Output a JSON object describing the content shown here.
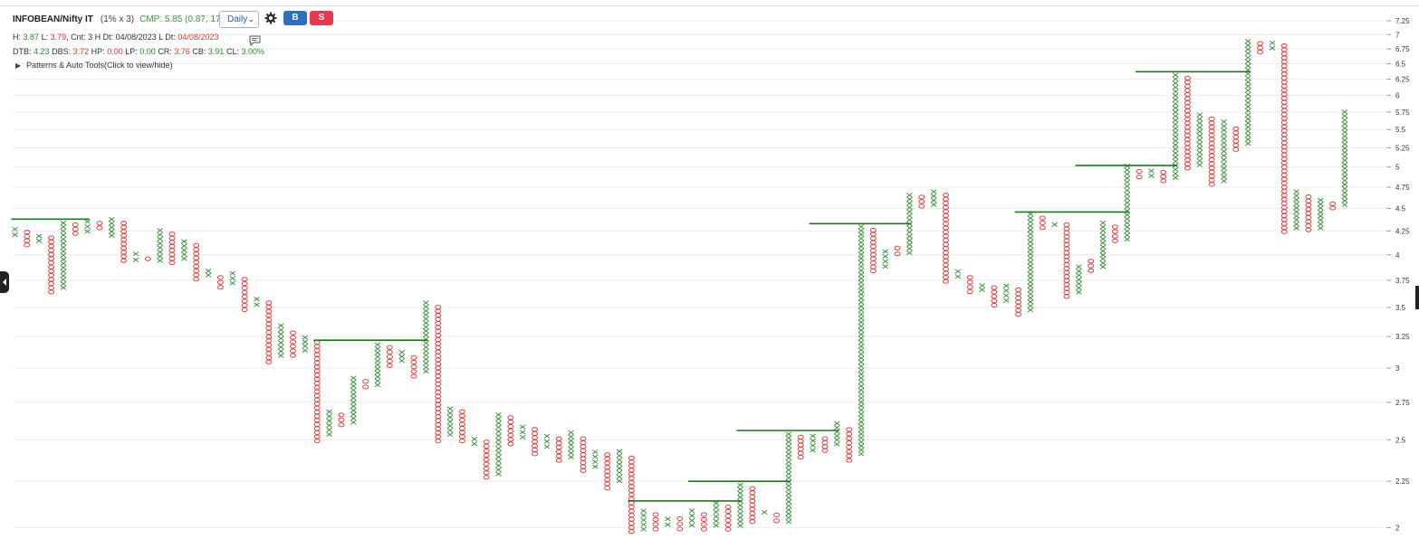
{
  "header": {
    "symbol": "INFOBEAN/Nifty IT",
    "box_size": "(1% x 3)",
    "cmp": "CMP: 5.85 (0.87, 17.47%)",
    "timeframe": "Daily",
    "buy_label": "B",
    "sell_label": "S"
  },
  "stats_line1": {
    "h_label": "H:",
    "h": "3.87",
    "l_label": "L:",
    "l": "3.79",
    "cnt_label": ", Cnt: 3 H Dt:",
    "h_dt": "04/08/2023",
    "l_dt_label": "L Dt:",
    "l_dt": "04/08/2023"
  },
  "stats_line2": {
    "dtb_label": "DTB:",
    "dtb": "4.23",
    "dbs_label": "DBS:",
    "dbs": "3.72",
    "hp_label": "HP:",
    "hp": "0.00",
    "lp_label": "LP:",
    "lp": "0.00",
    "cr_label": "CR:",
    "cr": "3.76",
    "cb_label": "CB:",
    "cb": "3.91",
    "cl_label": "CL:",
    "cl": "3.00%"
  },
  "patterns_toggle": "Patterns & Auto Tools(Click to view/hide)",
  "icons": [
    "gear-icon",
    "comment-icon",
    "chevron-left-icon",
    "expand-triangle-icon"
  ],
  "colors": {
    "x_color": "#2e8b2e",
    "o_color": "#e23232",
    "breakout_line": "#1a7a1a",
    "cmp_color": "#3a9a3a"
  },
  "chart_data": {
    "type": "point-and-figure",
    "box_size_pct": 1,
    "reversal": 3,
    "scale": "log",
    "ylim": [
      1.97,
      7.3
    ],
    "y_ticks": [
      "7.25",
      "7",
      "6.75",
      "6.5",
      "6.25",
      "6",
      "5.75",
      "5.5",
      "5.25",
      "5",
      "4.75",
      "4.5",
      "4.25",
      "4",
      "3.75",
      "3.5",
      "3.25",
      "3",
      "2.75",
      "2.5",
      "2.25",
      "2"
    ],
    "grid": true,
    "columns": [
      {
        "type": "X",
        "low": 4.18,
        "high": 4.3
      },
      {
        "type": "O",
        "low": 4.08,
        "high": 4.26
      },
      {
        "type": "X",
        "low": 4.12,
        "high": 4.22
      },
      {
        "type": "O",
        "low": 3.62,
        "high": 4.2
      },
      {
        "type": "X",
        "low": 3.66,
        "high": 4.36
      },
      {
        "type": "O",
        "low": 4.2,
        "high": 4.34
      },
      {
        "type": "X",
        "low": 4.22,
        "high": 4.38
      },
      {
        "type": "O",
        "low": 4.26,
        "high": 4.36
      },
      {
        "type": "X",
        "low": 4.18,
        "high": 4.4
      },
      {
        "type": "O",
        "low": 3.92,
        "high": 4.36
      },
      {
        "type": "X",
        "low": 3.92,
        "high": 4.04
      },
      {
        "type": "O",
        "low": 3.92,
        "high": 4.0
      },
      {
        "type": "X",
        "low": 3.92,
        "high": 4.28
      },
      {
        "type": "O",
        "low": 3.9,
        "high": 4.24
      },
      {
        "type": "X",
        "low": 3.94,
        "high": 4.16
      },
      {
        "type": "O",
        "low": 3.74,
        "high": 4.12
      },
      {
        "type": "X",
        "low": 3.78,
        "high": 3.86
      },
      {
        "type": "O",
        "low": 3.66,
        "high": 3.8
      },
      {
        "type": "X",
        "low": 3.7,
        "high": 3.84
      },
      {
        "type": "O",
        "low": 3.46,
        "high": 3.78
      },
      {
        "type": "X",
        "low": 3.5,
        "high": 3.6
      },
      {
        "type": "O",
        "low": 3.03,
        "high": 3.56
      },
      {
        "type": "X",
        "low": 3.08,
        "high": 3.36
      },
      {
        "type": "O",
        "low": 3.08,
        "high": 3.3
      },
      {
        "type": "X",
        "low": 3.12,
        "high": 3.26
      },
      {
        "type": "O",
        "low": 2.48,
        "high": 3.22
      },
      {
        "type": "X",
        "low": 2.52,
        "high": 2.7
      },
      {
        "type": "O",
        "low": 2.58,
        "high": 2.68
      },
      {
        "type": "X",
        "low": 2.6,
        "high": 2.94
      },
      {
        "type": "O",
        "low": 2.84,
        "high": 2.92
      },
      {
        "type": "X",
        "low": 2.86,
        "high": 3.2
      },
      {
        "type": "O",
        "low": 3.0,
        "high": 3.18
      },
      {
        "type": "X",
        "low": 3.04,
        "high": 3.14
      },
      {
        "type": "O",
        "low": 2.92,
        "high": 3.1
      },
      {
        "type": "X",
        "low": 2.96,
        "high": 3.56
      },
      {
        "type": "O",
        "low": 2.48,
        "high": 3.52
      },
      {
        "type": "X",
        "low": 2.52,
        "high": 2.72
      },
      {
        "type": "O",
        "low": 2.48,
        "high": 2.7
      },
      {
        "type": "X",
        "low": 2.46,
        "high": 2.52
      },
      {
        "type": "O",
        "low": 2.26,
        "high": 2.5
      },
      {
        "type": "X",
        "low": 2.28,
        "high": 2.68
      },
      {
        "type": "O",
        "low": 2.46,
        "high": 2.66
      },
      {
        "type": "X",
        "low": 2.5,
        "high": 2.6
      },
      {
        "type": "O",
        "low": 2.4,
        "high": 2.58
      },
      {
        "type": "X",
        "low": 2.44,
        "high": 2.54
      },
      {
        "type": "O",
        "low": 2.36,
        "high": 2.52
      },
      {
        "type": "X",
        "low": 2.38,
        "high": 2.56
      },
      {
        "type": "O",
        "low": 2.3,
        "high": 2.52
      },
      {
        "type": "X",
        "low": 2.32,
        "high": 2.44
      },
      {
        "type": "O",
        "low": 2.2,
        "high": 2.42
      },
      {
        "type": "X",
        "low": 2.24,
        "high": 2.44
      },
      {
        "type": "O",
        "low": 1.97,
        "high": 2.4
      },
      {
        "type": "X",
        "low": 1.98,
        "high": 2.1
      },
      {
        "type": "O",
        "low": 1.98,
        "high": 2.08
      },
      {
        "type": "X",
        "low": 2.0,
        "high": 2.06
      },
      {
        "type": "O",
        "low": 1.98,
        "high": 2.06
      },
      {
        "type": "X",
        "low": 2.0,
        "high": 2.1
      },
      {
        "type": "O",
        "low": 1.98,
        "high": 2.08
      },
      {
        "type": "X",
        "low": 2.0,
        "high": 2.14
      },
      {
        "type": "O",
        "low": 1.98,
        "high": 2.12
      },
      {
        "type": "X",
        "low": 2.0,
        "high": 2.24
      },
      {
        "type": "O",
        "low": 2.02,
        "high": 2.22
      },
      {
        "type": "X",
        "low": 2.06,
        "high": 2.1
      },
      {
        "type": "O",
        "low": 2.02,
        "high": 2.08
      },
      {
        "type": "X",
        "low": 2.02,
        "high": 2.55
      },
      {
        "type": "O",
        "low": 2.38,
        "high": 2.53
      },
      {
        "type": "X",
        "low": 2.42,
        "high": 2.54
      },
      {
        "type": "O",
        "low": 2.42,
        "high": 2.52
      },
      {
        "type": "X",
        "low": 2.46,
        "high": 2.62
      },
      {
        "type": "O",
        "low": 2.36,
        "high": 2.58
      },
      {
        "type": "X",
        "low": 2.4,
        "high": 4.32
      },
      {
        "type": "O",
        "low": 3.82,
        "high": 4.28
      },
      {
        "type": "X",
        "low": 3.86,
        "high": 4.06
      },
      {
        "type": "O",
        "low": 3.98,
        "high": 4.1
      },
      {
        "type": "X",
        "low": 4.0,
        "high": 4.68
      },
      {
        "type": "O",
        "low": 4.5,
        "high": 4.66
      },
      {
        "type": "X",
        "low": 4.52,
        "high": 4.72
      },
      {
        "type": "O",
        "low": 3.72,
        "high": 4.68
      },
      {
        "type": "X",
        "low": 3.76,
        "high": 3.86
      },
      {
        "type": "O",
        "low": 3.62,
        "high": 3.8
      },
      {
        "type": "X",
        "low": 3.64,
        "high": 3.72
      },
      {
        "type": "O",
        "low": 3.5,
        "high": 3.7
      },
      {
        "type": "X",
        "low": 3.54,
        "high": 3.72
      },
      {
        "type": "O",
        "low": 3.42,
        "high": 3.68
      },
      {
        "type": "X",
        "low": 3.46,
        "high": 4.46
      },
      {
        "type": "O",
        "low": 4.26,
        "high": 4.42
      },
      {
        "type": "X",
        "low": 4.28,
        "high": 4.36
      },
      {
        "type": "O",
        "low": 3.58,
        "high": 4.34
      },
      {
        "type": "X",
        "low": 3.62,
        "high": 3.9
      },
      {
        "type": "O",
        "low": 3.82,
        "high": 3.96
      },
      {
        "type": "X",
        "low": 3.86,
        "high": 4.36
      },
      {
        "type": "O",
        "low": 4.12,
        "high": 4.32
      },
      {
        "type": "X",
        "low": 4.14,
        "high": 5.04
      },
      {
        "type": "O",
        "low": 4.84,
        "high": 4.98
      },
      {
        "type": "X",
        "low": 4.86,
        "high": 4.98
      },
      {
        "type": "O",
        "low": 4.8,
        "high": 4.96
      },
      {
        "type": "X",
        "low": 4.84,
        "high": 6.35
      },
      {
        "type": "O",
        "low": 4.96,
        "high": 6.3
      },
      {
        "type": "X",
        "low": 5.0,
        "high": 5.74
      },
      {
        "type": "O",
        "low": 4.76,
        "high": 5.68
      },
      {
        "type": "X",
        "low": 4.8,
        "high": 5.64
      },
      {
        "type": "O",
        "low": 5.2,
        "high": 5.54
      },
      {
        "type": "X",
        "low": 5.28,
        "high": 6.92
      },
      {
        "type": "O",
        "low": 6.66,
        "high": 6.88
      },
      {
        "type": "X",
        "low": 6.72,
        "high": 6.9
      },
      {
        "type": "O",
        "low": 4.22,
        "high": 6.84
      },
      {
        "type": "X",
        "low": 4.26,
        "high": 4.72
      },
      {
        "type": "O",
        "low": 4.24,
        "high": 4.66
      },
      {
        "type": "X",
        "low": 4.26,
        "high": 4.62
      },
      {
        "type": "O",
        "low": 4.48,
        "high": 4.58
      },
      {
        "type": "X",
        "low": 4.52,
        "high": 5.78
      }
    ],
    "breakout_levels": [
      {
        "from_col": 0,
        "to_col": 6,
        "value": 4.38
      },
      {
        "from_col": 25,
        "to_col": 34,
        "value": 3.22
      },
      {
        "from_col": 51,
        "to_col": 60,
        "value": 2.14
      },
      {
        "from_col": 56,
        "to_col": 64,
        "value": 2.25
      },
      {
        "from_col": 60,
        "to_col": 68,
        "value": 2.56
      },
      {
        "from_col": 66,
        "to_col": 74,
        "value": 4.33
      },
      {
        "from_col": 83,
        "to_col": 92,
        "value": 4.46
      },
      {
        "from_col": 88,
        "to_col": 96,
        "value": 5.02
      },
      {
        "from_col": 93,
        "to_col": 102,
        "value": 6.37
      }
    ]
  }
}
